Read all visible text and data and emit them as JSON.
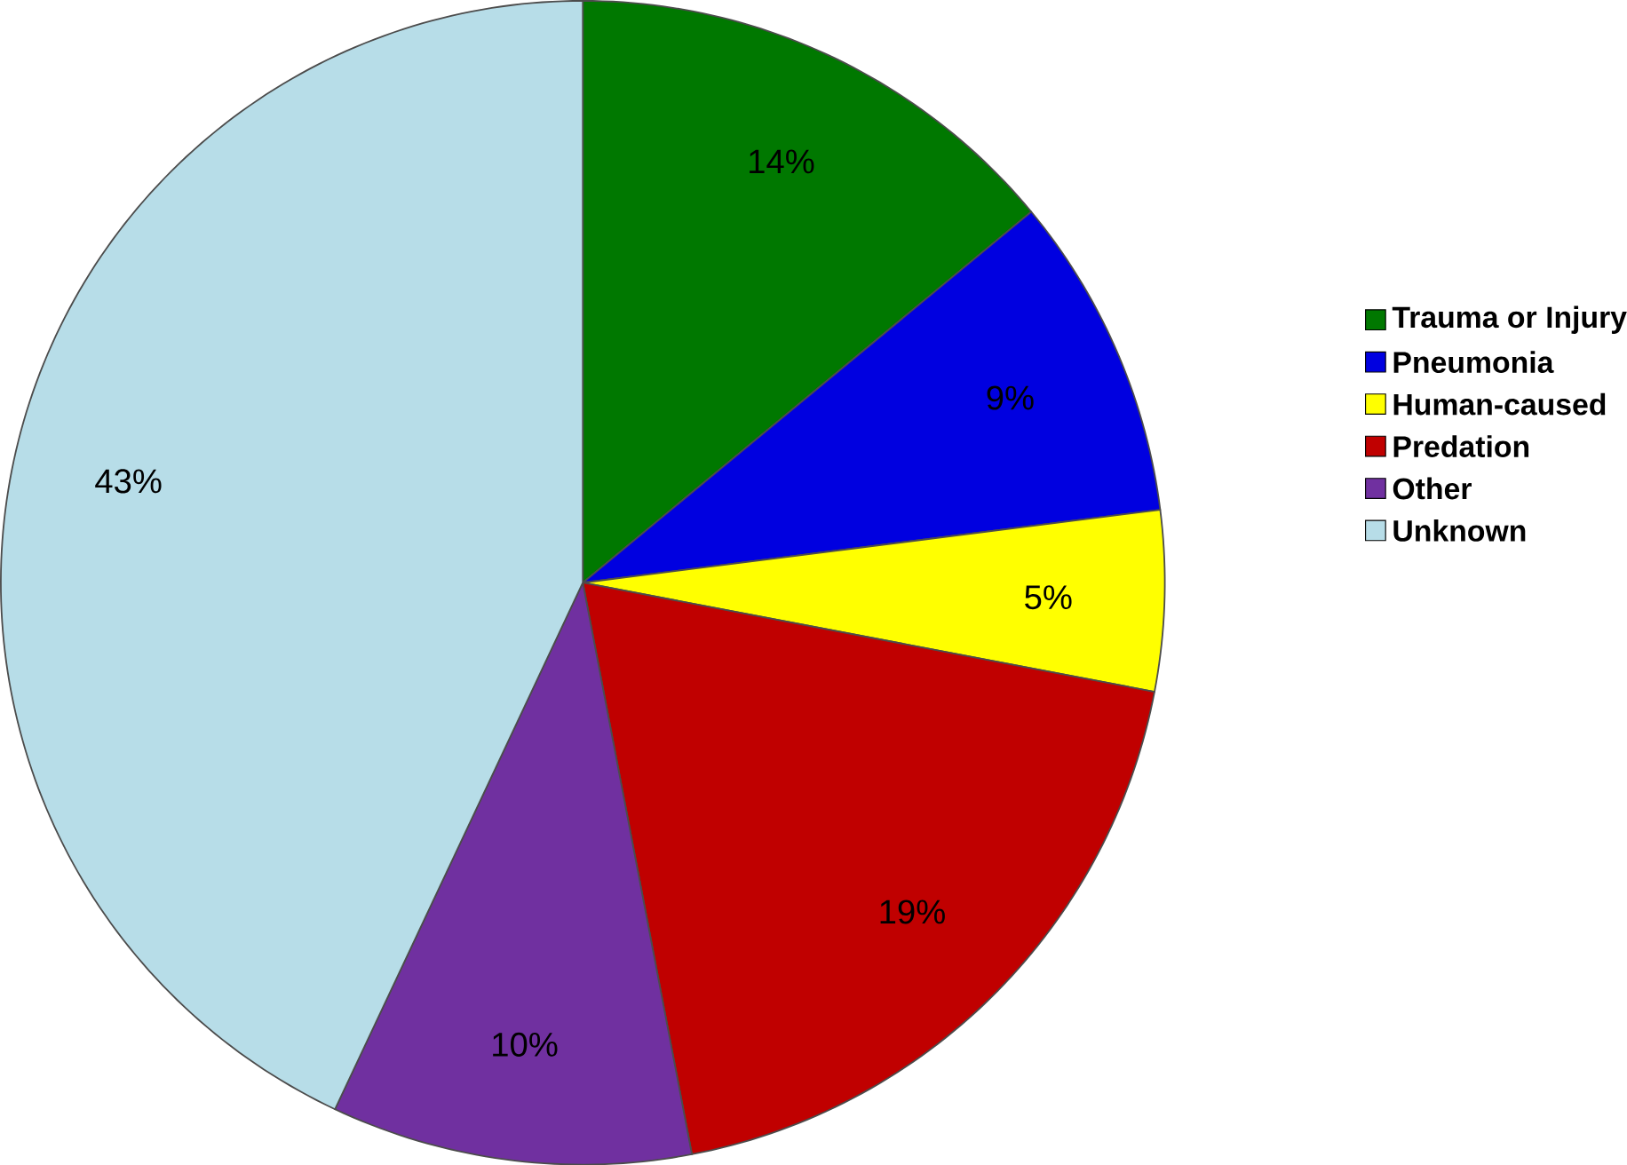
{
  "chart_data": {
    "type": "pie",
    "categories": [
      "Trauma or Injury",
      "Pneumonia",
      "Human-caused",
      "Predation",
      "Other",
      "Unknown"
    ],
    "values": [
      14,
      9,
      5,
      19,
      10,
      43
    ],
    "value_labels": [
      "14%",
      "9%",
      "5%",
      "19%",
      "10%",
      "43%"
    ],
    "colors": [
      "#007800",
      "#0000e0",
      "#ffff00",
      "#c00000",
      "#7030a0",
      "#b7dde8"
    ],
    "legend": "right"
  }
}
